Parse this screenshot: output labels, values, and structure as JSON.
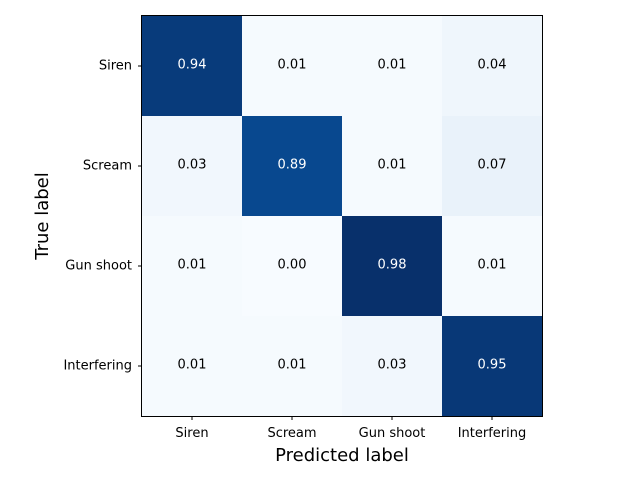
{
  "chart_data": {
    "type": "heatmap",
    "title": "",
    "xlabel": "Predicted label",
    "ylabel": "True label",
    "x_categories": [
      "Siren",
      "Scream",
      "Gun shoot",
      "Interfering"
    ],
    "y_categories": [
      "Siren",
      "Scream",
      "Gun shoot",
      "Interfering"
    ],
    "values": [
      [
        0.94,
        0.01,
        0.01,
        0.04
      ],
      [
        0.03,
        0.89,
        0.01,
        0.07
      ],
      [
        0.01,
        0.0,
        0.98,
        0.01
      ],
      [
        0.01,
        0.01,
        0.03,
        0.95
      ]
    ],
    "colormap": "Blues",
    "value_format": "2 decimals",
    "grid": false,
    "legend": "none"
  }
}
